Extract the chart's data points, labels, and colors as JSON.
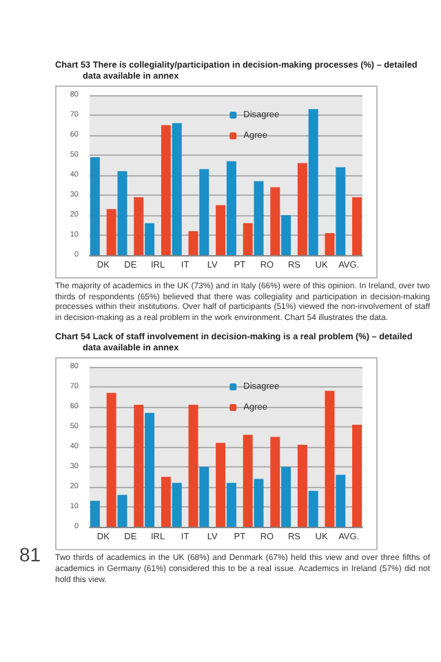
{
  "chart_data": [
    {
      "type": "bar",
      "title": "Chart 53 There is collegiality/participation in decision-making processes (%) – detailed data available in annex",
      "categories": [
        "DK",
        "DE",
        "IRL",
        "IT",
        "LV",
        "PT",
        "RO",
        "RS",
        "UK",
        "AVG."
      ],
      "series": [
        {
          "name": "Disagree",
          "color": "#1b8fc8",
          "values": [
            49,
            42,
            16,
            66,
            43,
            47,
            37,
            20,
            73,
            44
          ]
        },
        {
          "name": "Agree",
          "color": "#e9492b",
          "values": [
            23,
            29,
            65,
            12,
            25,
            16,
            34,
            46,
            11,
            29
          ]
        }
      ],
      "ylim": [
        0,
        80
      ],
      "yticks": [
        0,
        10,
        20,
        30,
        40,
        50,
        60,
        70,
        80
      ],
      "grid": "y",
      "legend": "top",
      "annotations": [
        "The majority of academics in the UK (73%) and in Italy (66%) were of this opinion. In Ireland, over two thirds of respondents (65%) believed that there was collegiality and participation in decision-making processes within their institutions. Over half of participants (51%) viewed the non-involvement of staff in decision-making as a real problem in the work environment. Chart 54 illustrates the data."
      ]
    },
    {
      "type": "bar",
      "title": "Chart 54 Lack of staff involvement in decision-making is a real problem (%) – detailed data available in annex",
      "categories": [
        "DK",
        "DE",
        "IRL",
        "IT",
        "LV",
        "PT",
        "RO",
        "RS",
        "UK",
        "AVG."
      ],
      "series": [
        {
          "name": "Disagree",
          "color": "#1b8fc8",
          "values": [
            13,
            16,
            57,
            22,
            30,
            22,
            24,
            30,
            18,
            26
          ]
        },
        {
          "name": "Agree",
          "color": "#e9492b",
          "values": [
            67,
            61,
            25,
            61,
            42,
            46,
            45,
            41,
            68,
            51
          ]
        }
      ],
      "ylim": [
        0,
        80
      ],
      "yticks": [
        0,
        10,
        20,
        30,
        40,
        50,
        60,
        70,
        80
      ],
      "grid": "y",
      "legend": "top",
      "annotations": [
        "Two thirds of academics in the UK (68%) and Denmark (67%) held this view and over three fifths of academics in Germany (61%) considered this to be a real issue. Academics in Ireland (57%) did not hold this view.",
        "81"
      ]
    }
  ]
}
